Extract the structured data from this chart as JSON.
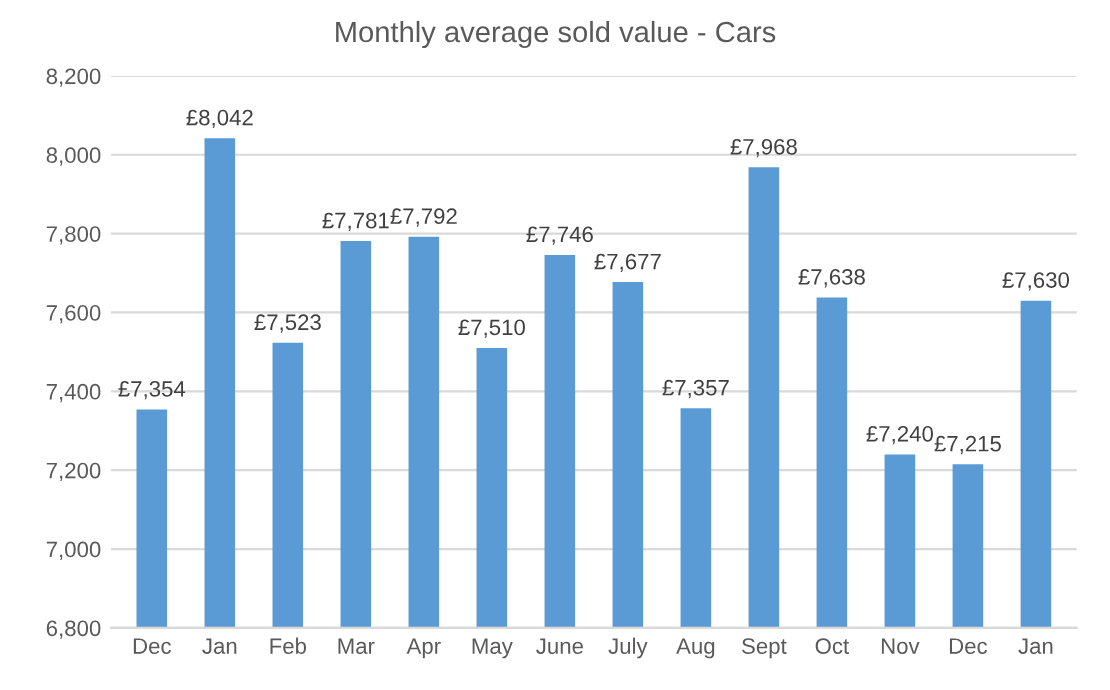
{
  "chart_data": {
    "type": "bar",
    "title": "Monthly average sold value - Cars",
    "categories": [
      "Dec",
      "Jan",
      "Feb",
      "Mar",
      "Apr",
      "May",
      "June",
      "July",
      "Aug",
      "Sept",
      "Oct",
      "Nov",
      "Dec",
      "Jan"
    ],
    "values": [
      7354,
      8042,
      7523,
      7781,
      7792,
      7510,
      7746,
      7677,
      7357,
      7968,
      7638,
      7240,
      7215,
      7630
    ],
    "value_labels": [
      "£7,354",
      "£8,042",
      "£7,523",
      "£7,781",
      "£7,792",
      "£7,510",
      "£7,746",
      "£7,677",
      "£7,357",
      "£7,968",
      "£7,638",
      "£7,240",
      "£7,215",
      "£7,630"
    ],
    "color": "#5b9bd5",
    "ylim": [
      6800,
      8200
    ],
    "yticks": [
      {
        "value": 6800,
        "label": "6,800"
      },
      {
        "value": 7000,
        "label": "7,000"
      },
      {
        "value": 7200,
        "label": "7,200"
      },
      {
        "value": 7400,
        "label": "7,400"
      },
      {
        "value": 7600,
        "label": "7,600"
      },
      {
        "value": 7800,
        "label": "7,800"
      },
      {
        "value": 8000,
        "label": "8,000"
      },
      {
        "value": 8200,
        "label": "8,200"
      }
    ],
    "grid": "y"
  }
}
